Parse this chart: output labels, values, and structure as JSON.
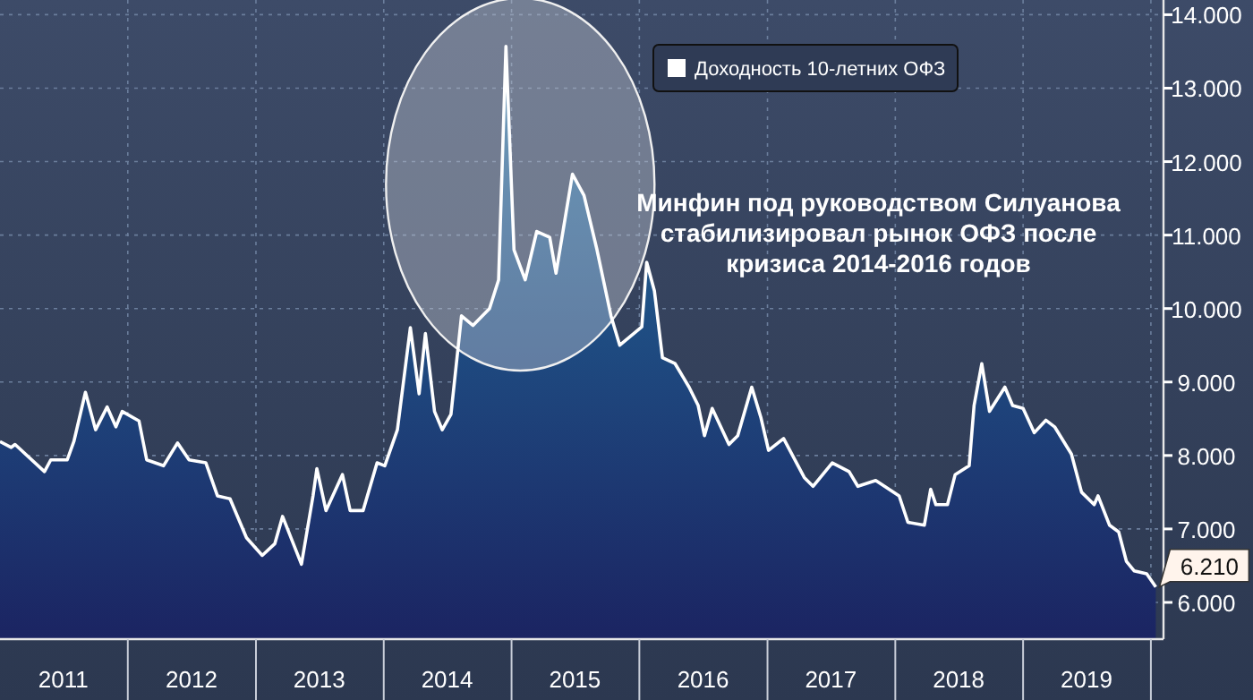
{
  "chart_data": {
    "type": "area",
    "legend": "top",
    "grid": true,
    "annotations": [
      "Минфин под руководством Силуанова стабилизировал рынок ОФЗ после кризиса 2014-2016 годов"
    ],
    "xlim": [
      "2011-01-01",
      "2020-02-06"
    ],
    "xticks": [
      {
        "value": "2012-01-01",
        "label": null
      },
      {
        "value": "2013-01-01",
        "label": null
      },
      {
        "value": "2014-01-01",
        "label": null
      },
      {
        "value": "2015-01-01",
        "label": null
      },
      {
        "value": "2016-01-01",
        "label": null
      },
      {
        "value": "2017-01-01",
        "label": null
      },
      {
        "value": "2018-01-01",
        "label": null
      },
      {
        "value": "2019-01-01",
        "label": null
      },
      {
        "value": "2020-01-01",
        "label": null
      },
      {
        "value": "2011-07-01",
        "label": "2011"
      },
      {
        "value": "2012-07-01",
        "label": "2012"
      },
      {
        "value": "2013-07-01",
        "label": "2013"
      },
      {
        "value": "2014-07-01",
        "label": "2014"
      },
      {
        "value": "2015-07-01",
        "label": "2015"
      },
      {
        "value": "2016-07-01",
        "label": "2016"
      },
      {
        "value": "2017-07-01",
        "label": "2017"
      },
      {
        "value": "2018-07-01",
        "label": "2018"
      },
      {
        "value": "2019-07-01",
        "label": "2019"
      }
    ],
    "ylim": [
      5.5,
      14.2
    ],
    "yticks": [
      {
        "value": 6,
        "label": "6.000"
      },
      {
        "value": 7,
        "label": "7.000"
      },
      {
        "value": 8,
        "label": "8.000"
      },
      {
        "value": 9,
        "label": "9.000"
      },
      {
        "value": 10,
        "label": "10.000"
      },
      {
        "value": 11,
        "label": "11.000"
      },
      {
        "value": 12,
        "label": "12.000"
      },
      {
        "value": 13,
        "label": "13.000"
      },
      {
        "value": 14,
        "label": "14.000"
      }
    ],
    "series": [
      {
        "name": "Доходность 10-летних ОФЗ",
        "color": "#ffffff",
        "x": [
          "2011-01-01",
          "2011-02-02",
          "2011-02-13",
          "2011-05-08",
          "2011-05-26",
          "2011-07-12",
          "2011-07-31",
          "2011-09-02",
          "2011-10-01",
          "2011-11-03",
          "2011-11-28",
          "2011-12-16",
          "2012-02-02",
          "2012-02-24",
          "2012-04-12",
          "2012-05-22",
          "2012-06-24",
          "2012-08-11",
          "2012-09-13",
          "2012-10-19",
          "2012-12-05",
          "2013-01-19",
          "2013-02-24",
          "2013-03-18",
          "2013-05-11",
          "2013-06-13",
          "2013-06-24",
          "2013-07-20",
          "2013-09-05",
          "2013-09-27",
          "2013-11-03",
          "2013-12-13",
          "2014-01-04",
          "2014-02-09",
          "2014-03-18",
          "2014-04-12",
          "2014-04-30",
          "2014-05-26",
          "2014-06-17",
          "2014-07-12",
          "2014-08-11",
          "2014-09-13",
          "2014-10-30",
          "2014-11-25",
          "2014-12-16",
          "2015-01-08",
          "2015-02-09",
          "2015-03-14",
          "2015-04-20",
          "2015-05-08",
          "2015-06-24",
          "2015-07-27",
          "2015-09-02",
          "2015-10-12",
          "2015-11-06",
          "2016-01-08",
          "2016-01-22",
          "2016-02-13",
          "2016-03-07",
          "2016-04-12",
          "2016-05-22",
          "2016-06-17",
          "2016-07-05",
          "2016-07-27",
          "2016-09-13",
          "2016-10-08",
          "2016-11-17",
          "2016-12-13",
          "2017-01-04",
          "2017-02-16",
          "2017-04-16",
          "2017-05-11",
          "2017-07-05",
          "2017-08-22",
          "2017-09-16",
          "2017-11-06",
          "2018-01-12",
          "2018-02-06",
          "2018-03-25",
          "2018-04-12",
          "2018-04-27",
          "2018-05-30",
          "2018-06-21",
          "2018-07-31",
          "2018-08-14",
          "2018-09-05",
          "2018-09-27",
          "2018-11-10",
          "2018-12-02",
          "2019-01-01",
          "2019-02-02",
          "2019-03-07",
          "2019-04-01",
          "2019-05-19",
          "2019-06-17",
          "2019-07-23",
          "2019-08-03",
          "2019-09-05",
          "2019-10-01",
          "2019-10-23",
          "2019-11-14",
          "2019-12-20",
          "2020-01-15"
        ],
        "values": [
          8.19,
          8.11,
          8.15,
          7.78,
          7.94,
          7.94,
          8.19,
          8.86,
          8.35,
          8.66,
          8.39,
          8.6,
          8.47,
          7.94,
          7.86,
          8.17,
          7.94,
          7.9,
          7.45,
          7.41,
          6.88,
          6.64,
          6.8,
          7.17,
          6.52,
          7.45,
          7.82,
          7.25,
          7.74,
          7.25,
          7.25,
          7.9,
          7.86,
          8.35,
          9.74,
          8.84,
          9.66,
          8.6,
          8.35,
          8.56,
          9.9,
          9.77,
          10.0,
          10.39,
          13.57,
          10.8,
          10.39,
          11.05,
          10.97,
          10.48,
          11.83,
          11.54,
          10.8,
          9.9,
          9.5,
          9.75,
          10.63,
          10.24,
          9.33,
          9.25,
          8.93,
          8.68,
          8.27,
          8.64,
          8.15,
          8.27,
          8.93,
          8.52,
          8.07,
          8.23,
          7.7,
          7.58,
          7.9,
          7.78,
          7.58,
          7.66,
          7.45,
          7.09,
          7.05,
          7.54,
          7.33,
          7.33,
          7.74,
          7.86,
          8.68,
          9.25,
          8.6,
          8.93,
          8.68,
          8.64,
          8.31,
          8.48,
          8.39,
          8.02,
          7.5,
          7.33,
          7.45,
          7.05,
          6.96,
          6.56,
          6.43,
          6.39,
          6.21
        ],
        "value_labels": [
          null,
          null,
          null,
          null,
          null,
          null,
          null,
          null,
          null,
          null,
          null,
          null,
          null,
          null,
          null,
          null,
          null,
          null,
          null,
          null,
          null,
          null,
          null,
          null,
          null,
          null,
          null,
          null,
          null,
          null,
          null,
          null,
          null,
          null,
          null,
          null,
          null,
          null,
          null,
          null,
          null,
          null,
          null,
          null,
          null,
          null,
          null,
          null,
          null,
          null,
          null,
          null,
          null,
          null,
          null,
          null,
          null,
          null,
          null,
          null,
          null,
          null,
          null,
          null,
          null,
          null,
          null,
          null,
          null,
          null,
          null,
          null,
          null,
          null,
          null,
          null,
          null,
          null,
          null,
          null,
          null,
          null,
          null,
          null,
          null,
          null,
          null,
          null,
          null,
          null,
          null,
          null,
          null,
          null,
          null,
          null,
          null,
          null,
          null,
          null,
          null,
          null,
          "6.210"
        ]
      }
    ]
  }
}
